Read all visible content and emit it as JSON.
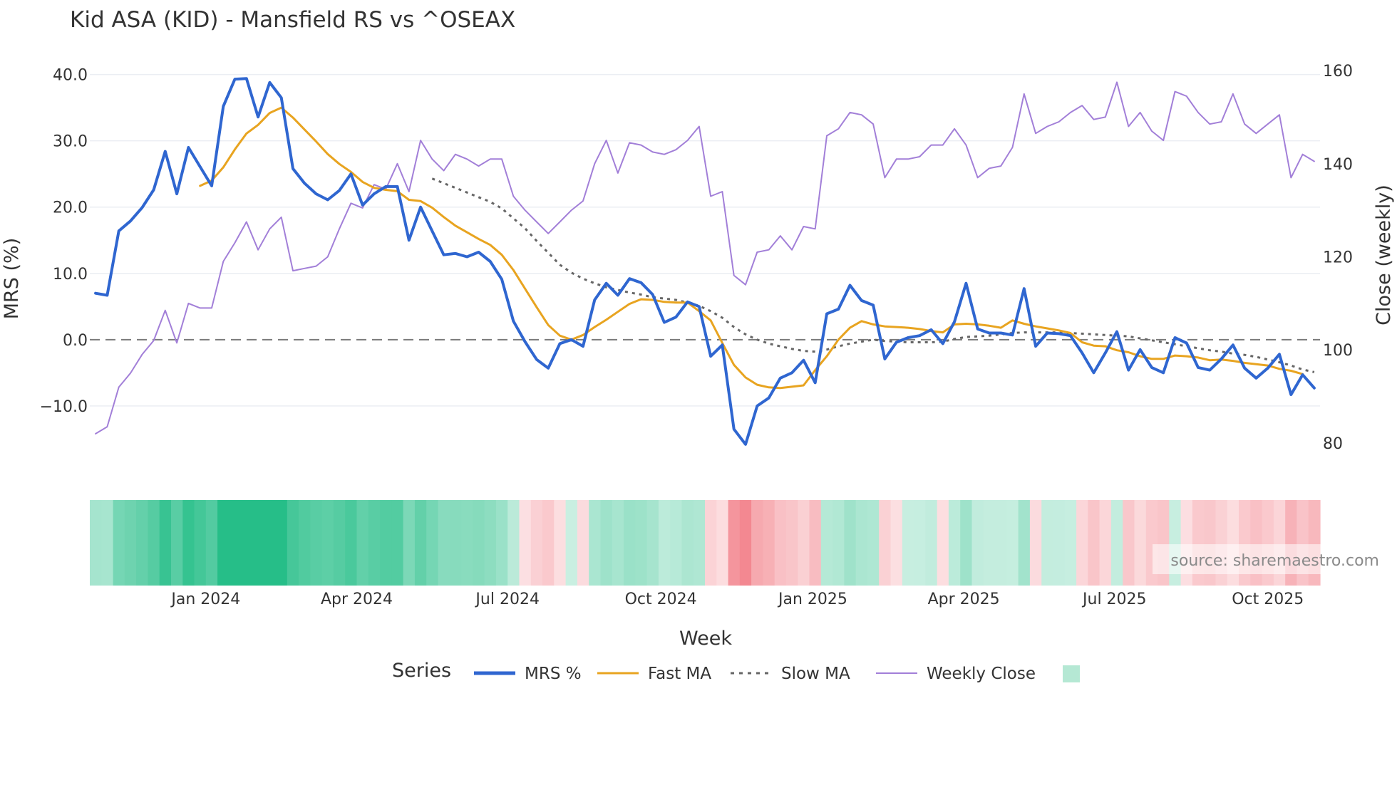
{
  "chart_data": {
    "type": "line",
    "title": "Kid ASA (KID) - Mansfield RS vs ^OSEAX",
    "xlabel": "Week",
    "ylabel_left": "MRS (%)",
    "ylabel_right": "Close (weekly)",
    "y_left_range": [
      -17.0,
      42.0
    ],
    "y_right_range": [
      78.0,
      162.0
    ],
    "y_left_ticks": [
      "40.0",
      "30.0",
      "20.0",
      "10.0",
      "0.0",
      "−10.0"
    ],
    "y_left_tick_values": [
      40,
      30,
      20,
      10,
      0,
      -10
    ],
    "y_right_ticks": [
      "160",
      "140",
      "120",
      "100",
      "80"
    ],
    "y_right_tick_values": [
      160,
      140,
      120,
      100,
      80
    ],
    "x_ticks": [
      "Jan 2024",
      "Apr 2024",
      "Jul 2024",
      "Oct 2024",
      "Jan 2025",
      "Apr 2025",
      "Jul 2025",
      "Oct 2025"
    ],
    "x_tick_weeks": [
      9.5,
      22.5,
      35.5,
      48.7,
      61.8,
      74.8,
      87.8,
      101.0
    ],
    "num_weeks": 106,
    "zero_line": 0,
    "series": [
      {
        "name": "MRS %",
        "color": "#2f66d0",
        "style": "solid",
        "width": 4,
        "axis": "left",
        "start_week": 0,
        "values": [
          7.0,
          6.7,
          16.4,
          17.9,
          19.9,
          22.6,
          28.4,
          22.0,
          29.0,
          26.1,
          23.2,
          35.2,
          39.3,
          39.4,
          33.6,
          38.8,
          36.5,
          25.8,
          23.6,
          22.0,
          21.1,
          22.5,
          25.0,
          20.3,
          22.0,
          23.1,
          23.1,
          15.0,
          20.0,
          16.4,
          12.8,
          13.0,
          12.5,
          13.2,
          11.8,
          9.1,
          2.8,
          -0.3,
          -3.0,
          -4.3,
          -0.6,
          0.0,
          -1.0,
          6.0,
          8.5,
          6.7,
          9.2,
          8.6,
          6.8,
          2.6,
          3.4,
          5.7,
          5.0,
          -2.5,
          -0.8,
          -13.5,
          -15.8,
          -10.0,
          -8.8,
          -5.8,
          -5.0,
          -3.1,
          -6.5,
          3.9,
          4.6,
          8.2,
          5.9,
          5.2,
          -2.9,
          -0.4,
          0.3,
          0.6,
          1.5,
          -0.6,
          2.7,
          8.5,
          1.6,
          1.0,
          1.0,
          0.7,
          7.7,
          -1.0,
          1.0,
          0.9,
          0.6,
          -2.0,
          -5.0,
          -2.0,
          1.2,
          -4.6,
          -1.5,
          -4.2,
          -5.0,
          0.3,
          -0.5,
          -4.2,
          -4.6,
          -2.9,
          -0.8,
          -4.3,
          -5.8,
          -4.3,
          -2.2,
          -8.3,
          -5.3,
          -7.3
        ]
      },
      {
        "name": "Fast MA",
        "color": "#e8a420",
        "style": "solid",
        "width": 3,
        "axis": "left",
        "start_week": 9,
        "values": [
          23.2,
          24.0,
          26.0,
          28.7,
          31.1,
          32.4,
          34.2,
          35.0,
          33.5,
          31.7,
          29.9,
          28.0,
          26.5,
          25.3,
          23.8,
          22.9,
          22.6,
          22.4,
          21.1,
          20.9,
          19.9,
          18.5,
          17.2,
          16.2,
          15.2,
          14.3,
          12.8,
          10.5,
          7.7,
          4.9,
          2.2,
          0.6,
          0.0,
          0.7,
          1.9,
          3.0,
          4.2,
          5.4,
          6.1,
          6.0,
          5.7,
          5.6,
          5.6,
          4.3,
          2.9,
          -0.5,
          -3.8,
          -5.7,
          -6.8,
          -7.2,
          -7.3,
          -7.1,
          -6.9,
          -4.6,
          -2.5,
          0.0,
          1.8,
          2.8,
          2.3,
          2.0,
          1.9,
          1.8,
          1.6,
          1.3,
          1.1,
          2.3,
          2.4,
          2.3,
          2.1,
          1.8,
          2.9,
          2.4,
          2.0,
          1.7,
          1.4,
          1.0,
          -0.4,
          -0.9,
          -1.0,
          -1.6,
          -1.9,
          -2.5,
          -2.9,
          -2.9,
          -2.4,
          -2.5,
          -2.7,
          -3.1,
          -3.0,
          -3.2,
          -3.5,
          -3.7,
          -3.9,
          -4.4,
          -4.7,
          -5.2
        ]
      },
      {
        "name": "Slow MA",
        "color": "#666666",
        "style": "dot",
        "width": 3,
        "axis": "left",
        "start_week": 29,
        "values": [
          24.3,
          23.6,
          22.9,
          22.2,
          21.5,
          20.8,
          19.8,
          18.3,
          16.8,
          14.9,
          13.1,
          11.3,
          10.1,
          9.2,
          8.5,
          7.9,
          7.5,
          7.1,
          6.8,
          6.4,
          6.2,
          6.0,
          5.6,
          5.1,
          4.3,
          3.3,
          1.9,
          0.8,
          0.0,
          -0.6,
          -1.0,
          -1.4,
          -1.7,
          -1.8,
          -1.5,
          -1.0,
          -0.6,
          -0.3,
          0.0,
          -0.2,
          -0.3,
          -0.4,
          -0.4,
          -0.4,
          -0.3,
          0.1,
          0.4,
          0.5,
          0.6,
          0.8,
          1.0,
          1.1,
          1.1,
          1.1,
          1.1,
          1.0,
          0.9,
          0.8,
          0.7,
          0.6,
          0.5,
          0.2,
          -0.1,
          -0.4,
          -0.7,
          -1.0,
          -1.3,
          -1.6,
          -1.8,
          -2.1,
          -2.3,
          -2.6,
          -3.0,
          -3.4,
          -3.9,
          -4.5,
          -4.9
        ]
      },
      {
        "name": "Weekly Close",
        "color": "#a27fd8",
        "style": "solid",
        "width": 2,
        "axis": "right",
        "start_week": 0,
        "values": [
          82.0,
          83.5,
          92.0,
          95.0,
          99.0,
          102.0,
          108.5,
          101.5,
          110.0,
          109.0,
          109.0,
          119.0,
          123.0,
          127.5,
          121.5,
          126.0,
          128.5,
          117.0,
          117.5,
          118.0,
          120.0,
          126.0,
          131.5,
          130.5,
          135.5,
          134.5,
          140.0,
          134.0,
          145.0,
          141.0,
          138.5,
          142.0,
          141.0,
          139.5,
          141.0,
          141.0,
          133.0,
          130.0,
          127.5,
          125.0,
          127.5,
          130.0,
          132.0,
          140.0,
          145.0,
          138.0,
          144.5,
          144.0,
          142.5,
          142.0,
          143.0,
          145.0,
          148.0,
          133.0,
          134.0,
          116.0,
          114.0,
          121.0,
          121.5,
          124.5,
          121.5,
          126.5,
          126.0,
          146.0,
          147.5,
          151.0,
          150.5,
          148.5,
          137.0,
          141.0,
          141.0,
          141.5,
          144.0,
          144.0,
          147.5,
          144.0,
          137.0,
          139.0,
          139.5,
          143.5,
          155.0,
          146.5,
          148.0,
          149.0,
          151.0,
          152.5,
          149.5,
          150.0,
          157.5,
          148.0,
          151.0,
          147.0,
          145.0,
          155.5,
          154.5,
          151.0,
          148.5,
          149.0,
          155.0,
          148.5,
          146.5,
          148.5,
          150.5,
          137.0,
          142.0,
          140.5
        ]
      }
    ],
    "heatmap": {
      "description": "Weekly MRS colour strip (green = positive, red = negative)",
      "source_series": "MRS %",
      "positive_color": "#26be88",
      "negative_color": "#f38790"
    },
    "legend": {
      "title": "Series",
      "position": "bottom",
      "items": [
        "MRS %",
        "Fast MA",
        "Slow MA",
        "Weekly Close",
        ""
      ]
    },
    "grid": true
  },
  "annotations": {
    "source": "source: sharemaestro.com"
  }
}
